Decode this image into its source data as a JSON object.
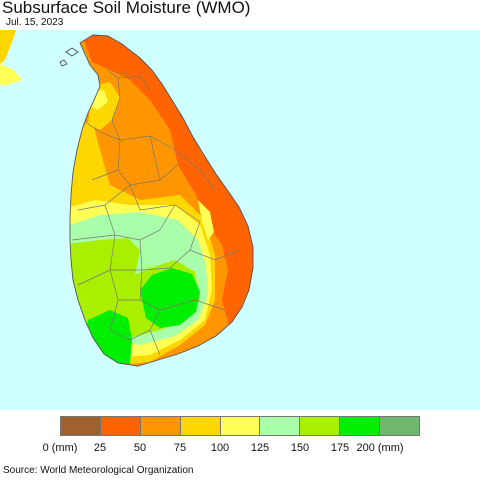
{
  "title": "Subsurface Soil Moisture (WMO)",
  "date": "Jul. 15, 2023",
  "source": "Source: World Meteorological Organization",
  "colors": {
    "ocean": "#cfffff",
    "boundary": "#777777",
    "class_0_25": "#a0622d",
    "class_25_50": "#ff6400",
    "class_50_75": "#ff9600",
    "class_75_100": "#ffd700",
    "class_100_125": "#ffff55",
    "class_125_150": "#aaffaa",
    "class_150_175": "#aaee00",
    "class_175_200": "#00ee00",
    "class_200_plus": "#70b870"
  },
  "legend": {
    "swatches": [
      {
        "name": "0-25",
        "color": "#a0622d"
      },
      {
        "name": "25-50",
        "color": "#ff6400"
      },
      {
        "name": "50-75",
        "color": "#ff9600"
      },
      {
        "name": "75-100",
        "color": "#ffd700"
      },
      {
        "name": "100-125",
        "color": "#ffff55"
      },
      {
        "name": "125-150",
        "color": "#aaffaa"
      },
      {
        "name": "150-175",
        "color": "#aaee00"
      },
      {
        "name": "175-200",
        "color": "#00ee00"
      },
      {
        "name": "200+",
        "color": "#70b870"
      }
    ],
    "ticks": [
      "0 (mm)",
      "25",
      "50",
      "75",
      "100",
      "125",
      "150",
      "175",
      "200 (mm)"
    ]
  }
}
